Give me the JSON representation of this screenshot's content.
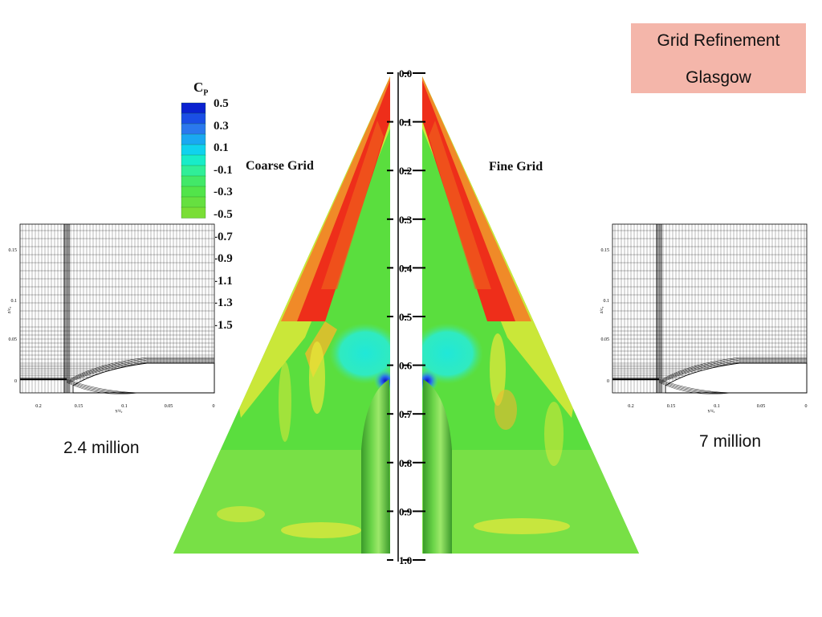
{
  "header": {
    "line1": "Grid Refinement",
    "line2": "Glasgow"
  },
  "legend": {
    "title": "C",
    "subscript": "P",
    "ticks": [
      "0.5",
      "0.3",
      "0.1",
      "-0.1",
      "-0.3",
      "-0.5",
      "-0.7",
      "-0.9",
      "-1.1",
      "-1.3",
      "-1.5"
    ],
    "colors": [
      "#0a22d0",
      "#1a4ee6",
      "#2a78ee",
      "#1aa8f2",
      "#10d2ee",
      "#18ecc8",
      "#30ee98",
      "#42e868",
      "#52e44a",
      "#66e040",
      "#7ade36"
    ]
  },
  "labels": {
    "coarse": "Coarse Grid",
    "fine": "Fine Grid"
  },
  "cells": {
    "coarse": "2.4 million",
    "fine": "7 million"
  },
  "ruler": {
    "ticks": [
      "0.0",
      "0.1",
      "0.2",
      "0.3",
      "0.4",
      "0.5",
      "0.6",
      "0.7",
      "0.8",
      "0.9",
      "1.0"
    ]
  },
  "mesh_axes": {
    "y_ticks": [
      "0.15",
      "0.1",
      "0.05",
      "0"
    ],
    "x_ticks": [
      "0.2",
      "0.15",
      "0.1",
      "0.05",
      "0"
    ],
    "x_label": "y/c",
    "x_label_sub": "r",
    "y_label": "z/c",
    "y_label_sub": "r"
  }
}
